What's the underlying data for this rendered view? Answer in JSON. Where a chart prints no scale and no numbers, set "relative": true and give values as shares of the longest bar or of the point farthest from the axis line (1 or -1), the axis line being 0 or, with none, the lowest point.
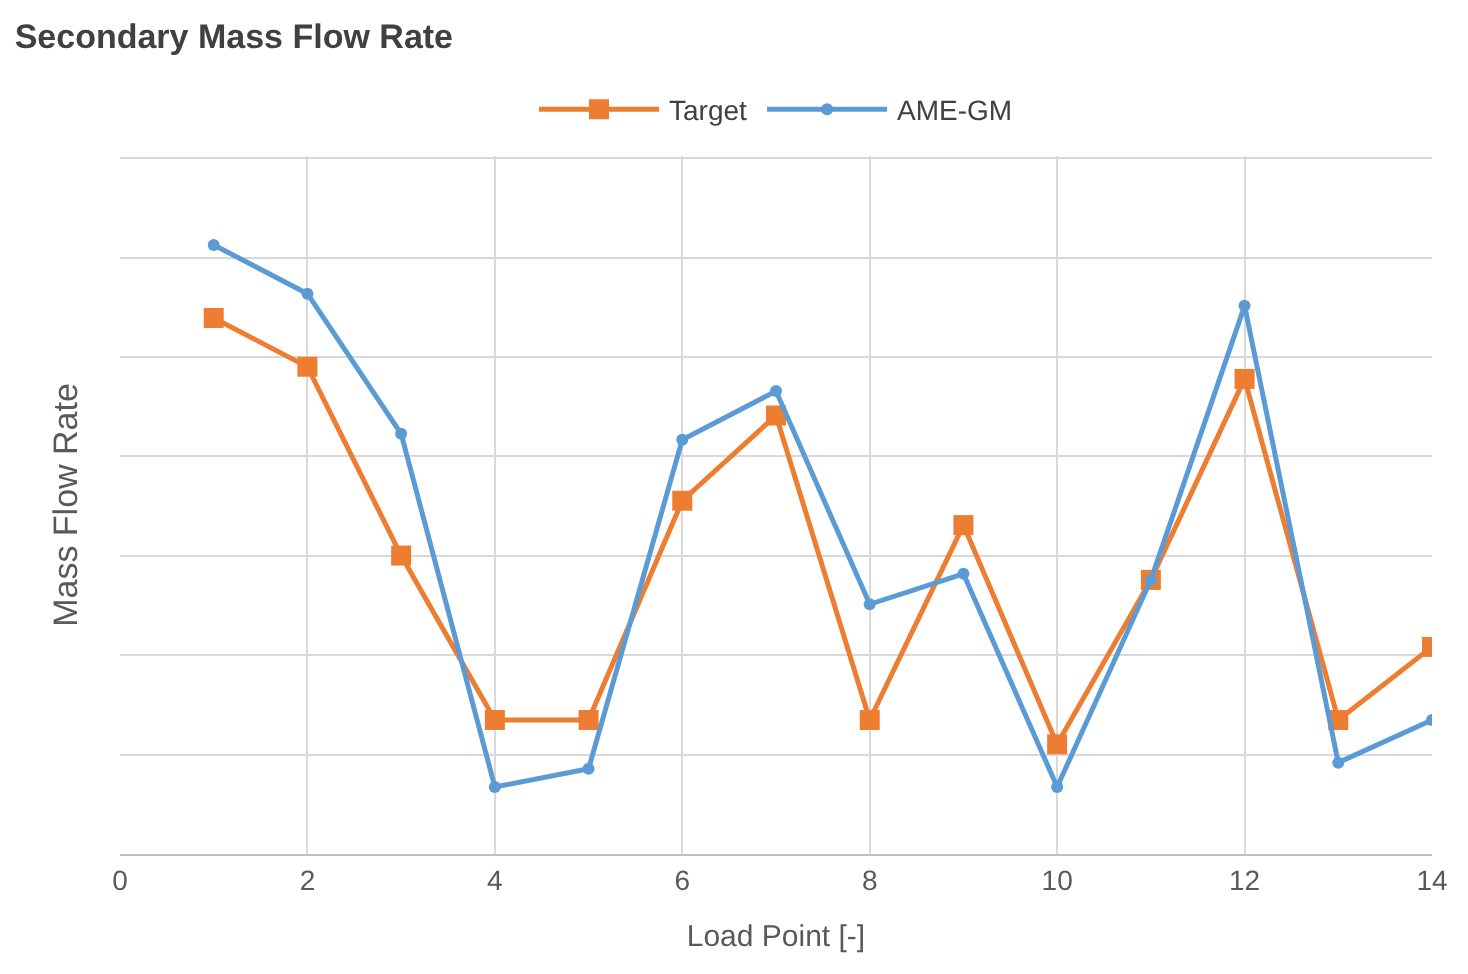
{
  "chart_data": {
    "type": "line",
    "title": "Secondary Mass Flow Rate",
    "xlabel": "Load Point [-]",
    "ylabel": "Mass Flow Rate",
    "relative": true,
    "x": [
      1,
      2,
      3,
      4,
      5,
      6,
      7,
      8,
      9,
      10,
      11,
      12,
      13,
      14
    ],
    "xlim": [
      0,
      14
    ],
    "xticks": [
      0,
      2,
      4,
      6,
      8,
      10,
      12,
      14
    ],
    "grid": true,
    "legend": "top",
    "line_style": "solid",
    "series": [
      {
        "name": "Target",
        "color": "#ed7d31",
        "marker": "square",
        "values": [
          0.88,
          0.8,
          0.49,
          0.22,
          0.22,
          0.58,
          0.72,
          0.22,
          0.54,
          0.18,
          0.45,
          0.78,
          0.22,
          0.34
        ]
      },
      {
        "name": "AME-GM",
        "color": "#5b9bd5",
        "marker": "circle",
        "values": [
          1,
          0.92,
          0.69,
          0.11,
          0.14,
          0.68,
          0.76,
          0.41,
          0.46,
          0.11,
          0.45,
          0.9,
          0.15,
          0.22
        ]
      }
    ]
  }
}
